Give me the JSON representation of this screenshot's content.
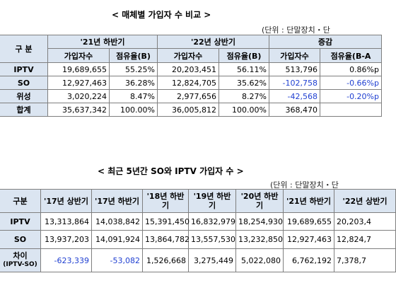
{
  "table1": {
    "title": "< 매체별 가입자 수 비교 >",
    "unit": "(단위 : 단말장치・단",
    "header_category": "구  분",
    "period_h2_21": "'21년 하반기",
    "period_h1_22": "'22년 상반기",
    "period_change": "증감",
    "col_subscribers": "가입자수",
    "col_share_b": "점유율(B)",
    "col_share_change": "점유율(B-A",
    "rows": [
      {
        "name": "IPTV",
        "sub21": "19,689,655",
        "share21": "55.25%",
        "sub22": "20,203,451",
        "share22": "56.11%",
        "diff": "513,796",
        "share_diff": "0.86%p"
      },
      {
        "name": "SO",
        "sub21": "12,927,463",
        "share21": "36.28%",
        "sub22": "12,824,705",
        "share22": "35.62%",
        "diff": "-102,758",
        "share_diff": "-0.66%p"
      },
      {
        "name": "위성",
        "sub21": "3,020,224",
        "share21": "8.47%",
        "sub22": "2,977,656",
        "share22": "8.27%",
        "diff": "-42,568",
        "share_diff": "-0.20%p"
      },
      {
        "name": "합계",
        "sub21": "35,637,342",
        "share21": "100.00%",
        "sub22": "36,005,812",
        "share22": "100.00%",
        "diff": "368,470",
        "share_diff": ""
      }
    ]
  },
  "table2": {
    "title": "< 최근 5년간 SO와 IPTV 가입자 수 >",
    "unit": "(단위 : 단말장치・단",
    "header_category": "구분",
    "periods": [
      "'17년 상반기",
      "'17년 하반기",
      "'18년 하반기",
      "'19년 하반기",
      "'20년 하반기",
      "'21년 하반기",
      "'22년 상반기"
    ],
    "rows": [
      {
        "name": "IPTV",
        "values": [
          "13,313,864",
          "14,038,842",
          "15,391,450",
          "16,832,979",
          "18,254,930",
          "19,689,655",
          "20,203,4"
        ]
      },
      {
        "name": "SO",
        "values": [
          "13,937,203",
          "14,091,924",
          "13,864,782",
          "13,557,530",
          "13,232,850",
          "12,927,463",
          "12,824,7"
        ]
      },
      {
        "name": "차이",
        "name_sub": "(IPTV-SO)",
        "values": [
          "-623,339",
          "-53,082",
          "1,526,668",
          "3,275,449",
          "5,022,080",
          "6,762,192",
          "7,378,7"
        ]
      }
    ]
  }
}
